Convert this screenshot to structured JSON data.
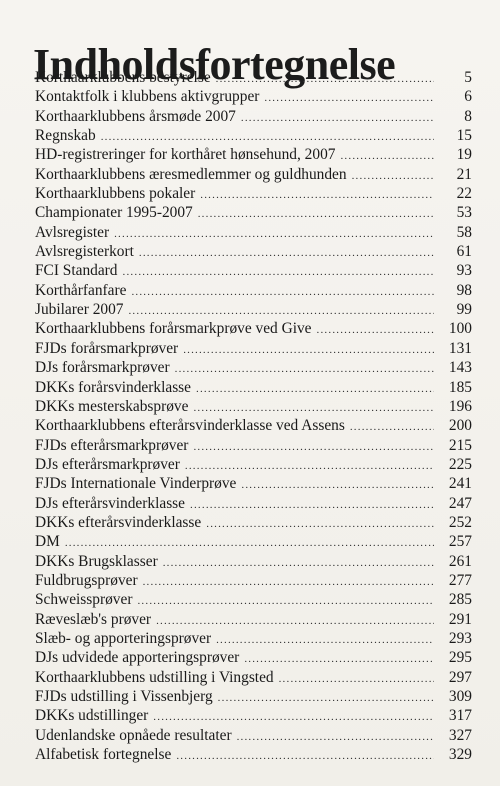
{
  "title": "Indholdsfortegnelse",
  "entries": [
    {
      "label": "Korthaarklubbens bestyrelse",
      "page": "5"
    },
    {
      "label": "Kontaktfolk i klubbens aktivgrupper",
      "page": "6"
    },
    {
      "label": "Korthaarklubbens årsmøde 2007",
      "page": "8"
    },
    {
      "label": "Regnskab",
      "page": "15"
    },
    {
      "label": "HD-registreringer for korthåret hønsehund, 2007",
      "page": "19"
    },
    {
      "label": "Korthaarklubbens æresmedlemmer og guldhunden",
      "page": "21"
    },
    {
      "label": "Korthaarklubbens pokaler",
      "page": "22"
    },
    {
      "label": "Championater 1995-2007",
      "page": "53"
    },
    {
      "label": "Avlsregister",
      "page": "58"
    },
    {
      "label": "Avlsregisterkort",
      "page": "61"
    },
    {
      "label": "FCI Standard",
      "page": "93"
    },
    {
      "label": "Korthårfanfare",
      "page": "98"
    },
    {
      "label": "Jubilarer 2007",
      "page": "99"
    },
    {
      "label": "Korthaarklubbens forårsmarkprøve ved Give",
      "page": "100"
    },
    {
      "label": "FJDs forårsmarkprøver",
      "page": "131"
    },
    {
      "label": "DJs forårsmarkprøver",
      "page": "143"
    },
    {
      "label": "DKKs forårsvinderklasse",
      "page": "185"
    },
    {
      "label": "DKKs mesterskabsprøve",
      "page": "196"
    },
    {
      "label": "Korthaarklubbens efterårsvinderklasse ved Assens",
      "page": "200"
    },
    {
      "label": "FJDs efterårsmarkprøver",
      "page": "215"
    },
    {
      "label": "DJs efterårsmarkprøver",
      "page": "225"
    },
    {
      "label": "FJDs Internationale Vinderprøve",
      "page": "241"
    },
    {
      "label": "DJs efterårsvinderklasse",
      "page": "247"
    },
    {
      "label": "DKKs efterårsvinderklasse",
      "page": "252"
    },
    {
      "label": "DM",
      "page": "257"
    },
    {
      "label": "DKKs Brugsklasser",
      "page": "261"
    },
    {
      "label": "Fuldbrugsprøver",
      "page": "277"
    },
    {
      "label": "Schweissprøver",
      "page": "285"
    },
    {
      "label": "Ræveslæb's prøver",
      "page": "291"
    },
    {
      "label": "Slæb- og apporteringsprøver",
      "page": "293"
    },
    {
      "label": "DJs udvidede apporteringsprøver",
      "page": "295"
    },
    {
      "label": "Korthaarklubbens udstilling i Vingsted",
      "page": "297"
    },
    {
      "label": "FJDs udstilling i Vissenbjerg",
      "page": "309"
    },
    {
      "label": "DKKs udstillinger",
      "page": "317"
    },
    {
      "label": "Udenlandske opnåede resultater",
      "page": "327"
    },
    {
      "label": "Alfabetisk fortegnelse",
      "page": "329"
    }
  ]
}
